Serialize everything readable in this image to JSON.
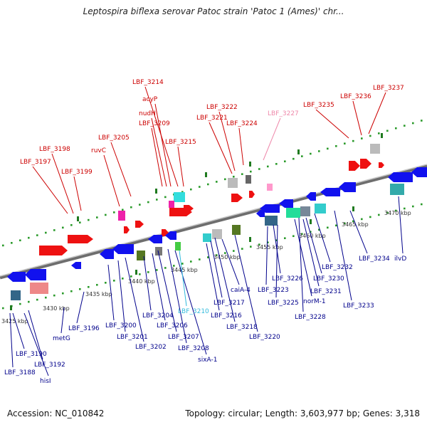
{
  "title": "Leptospira biflexa serovar Patoc strain 'Patoc 1 (Ames)' chr...",
  "footer": {
    "accession": "Accession: NC_010842",
    "summary": "Topology: circular; Length: 3,603,977 bp; Genes: 3,318"
  },
  "colors": {
    "backbone": "#8c8c8c",
    "tick_major": "#1f7a1f",
    "tick_minor": "#2a9a2a",
    "forward_label": "#cc0000",
    "reverse_label": "#00008b",
    "rna_label": "#33bbdd",
    "pseudo_label": "#ee88aa"
  },
  "scale_labels": [
    "3425 kbp",
    "3430 kbp",
    "3435 kbp",
    "3440 kbp",
    "3445 kbp",
    "3450 kbp",
    "3455 kbp",
    "3460 kbp",
    "3465 kbp",
    "3470 kbp"
  ],
  "forward_labels": [
    "LBF_3197",
    "LBF_3198",
    "LBF_3199",
    "ruvC",
    "LBF_3205",
    "LBF_3209",
    "nudH",
    "acyP",
    "LBF_3214",
    "LBF_3215",
    "LBF_3221",
    "LBF_3222",
    "LBF_3224",
    "LBF_3227",
    "LBF_3235",
    "LBF_3236",
    "LBF_3237"
  ],
  "reverse_labels": [
    "LBF_3188",
    "hisI",
    "LBF_3190",
    "LBF_3192",
    "metG",
    "LBF_3196",
    "LBF_3200",
    "LBF_3201",
    "LBF_3202",
    "LBF_3204",
    "LBF_3206",
    "LBF_3207",
    "LBF_3208",
    "sixA-1",
    "LBF_3210",
    "LBF_3216",
    "LBF_3217",
    "LBF_3218",
    "caiA-4",
    "LBF_3220",
    "LBF_3223",
    "LBF_3226",
    "LBF_3225",
    "norM-1",
    "LBF_3228",
    "LBF_3230",
    "LBF_3231",
    "LBF_3232",
    "LBF_3233",
    "LBF_3234",
    "ilvD"
  ]
}
